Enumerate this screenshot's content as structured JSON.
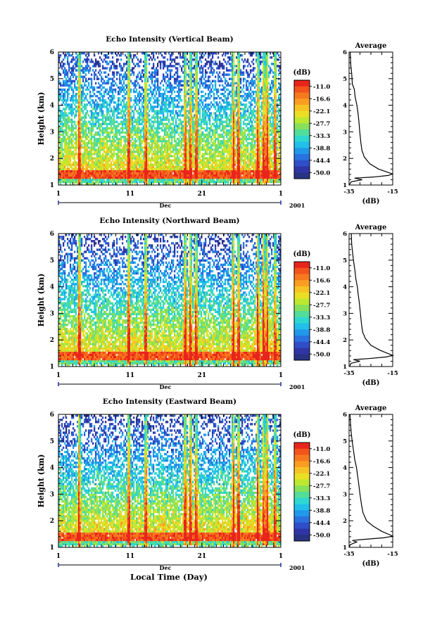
{
  "figure": {
    "xlabel_bottom": "Local Time (Day)"
  },
  "colorbar": {
    "unit": "(dB)",
    "ticks": [
      "-11.0",
      "-16.6",
      "-22.1",
      "-27.7",
      "-33.3",
      "-38.8",
      "-44.4",
      "-50.0"
    ],
    "colors": [
      "#e8251c",
      "#f2541c",
      "#f7791e",
      "#fa9d22",
      "#f6c324",
      "#eadf24",
      "#bde830",
      "#86e05a",
      "#52dd9a",
      "#2ed8d0",
      "#21bfea",
      "#2198ea",
      "#2a72e0",
      "#2f4ec8",
      "#2f35a6",
      "#293383"
    ]
  },
  "chart_data": [
    {
      "type": "heatmap",
      "title": "Echo Intensity (Vertical Beam)",
      "ylabel": "Height (km)",
      "yticks": [
        "1",
        "2",
        "3",
        "4",
        "5",
        "6"
      ],
      "ylim": [
        1,
        6
      ],
      "xticks": [
        "1",
        "11",
        "21",
        "1"
      ],
      "month_label": "Dec",
      "year_label": "2001",
      "value_range_db": [
        -50.0,
        -11.0
      ],
      "bright_day_columns": [
        3.9,
        10.8,
        13.2,
        18.7,
        19.4,
        20.2,
        25.4,
        26.1,
        28.8,
        29.6,
        30.1,
        31.2
      ],
      "average_profile": {
        "title": "Average",
        "xlabel": "(dB)",
        "xticks": [
          "-35",
          "-15"
        ],
        "xlim": [
          -35,
          -15
        ],
        "ylim": [
          1,
          6
        ],
        "points": [
          [
            -34.5,
            6.0
          ],
          [
            -34.2,
            5.5
          ],
          [
            -33.8,
            5.2
          ],
          [
            -33.5,
            4.8
          ],
          [
            -32.6,
            4.6
          ],
          [
            -32.2,
            4.3
          ],
          [
            -31.4,
            4.0
          ],
          [
            -30.9,
            3.7
          ],
          [
            -30.5,
            3.4
          ],
          [
            -30.1,
            3.0
          ],
          [
            -29.6,
            2.6
          ],
          [
            -29.1,
            2.3
          ],
          [
            -28.0,
            2.05
          ],
          [
            -25.5,
            1.8
          ],
          [
            -21.5,
            1.6
          ],
          [
            -18.0,
            1.5
          ],
          [
            -15.2,
            1.42
          ],
          [
            -17.0,
            1.36
          ],
          [
            -24.0,
            1.3
          ],
          [
            -32.5,
            1.26
          ],
          [
            -29.0,
            1.2
          ],
          [
            -34.0,
            1.12
          ],
          [
            -34.8,
            1.02
          ]
        ]
      }
    },
    {
      "type": "heatmap",
      "title": "Echo Intensity (Northward Beam)",
      "ylabel": "Height (km)",
      "yticks": [
        "1",
        "2",
        "3",
        "4",
        "5",
        "6"
      ],
      "ylim": [
        1,
        6
      ],
      "xticks": [
        "1",
        "11",
        "21",
        "1"
      ],
      "month_label": "Dec",
      "year_label": "2001",
      "value_range_db": [
        -50.0,
        -11.0
      ],
      "bright_day_columns": [
        3.9,
        10.8,
        13.2,
        18.7,
        19.4,
        20.2,
        25.4,
        26.1,
        28.8,
        29.6,
        30.1,
        31.2
      ],
      "average_profile": {
        "title": "Average",
        "xlabel": "(dB)",
        "xticks": [
          "-35",
          "-15"
        ],
        "xlim": [
          -35,
          -15
        ],
        "ylim": [
          1,
          6
        ],
        "points": [
          [
            -34.0,
            6.0
          ],
          [
            -33.8,
            5.6
          ],
          [
            -33.4,
            5.3
          ],
          [
            -33.0,
            5.0
          ],
          [
            -32.3,
            4.6
          ],
          [
            -31.9,
            4.3
          ],
          [
            -31.2,
            4.0
          ],
          [
            -30.8,
            3.7
          ],
          [
            -30.3,
            3.4
          ],
          [
            -29.8,
            3.0
          ],
          [
            -29.3,
            2.6
          ],
          [
            -28.8,
            2.3
          ],
          [
            -27.5,
            2.05
          ],
          [
            -25.0,
            1.8
          ],
          [
            -21.0,
            1.62
          ],
          [
            -17.5,
            1.5
          ],
          [
            -15.0,
            1.42
          ],
          [
            -18.0,
            1.36
          ],
          [
            -26.0,
            1.3
          ],
          [
            -33.0,
            1.26
          ],
          [
            -30.0,
            1.2
          ],
          [
            -34.2,
            1.12
          ],
          [
            -34.6,
            1.02
          ]
        ]
      }
    },
    {
      "type": "heatmap",
      "title": "Echo Intensity (Eastward Beam)",
      "ylabel": "Height (km)",
      "yticks": [
        "1",
        "2",
        "3",
        "4",
        "5",
        "6"
      ],
      "ylim": [
        1,
        6
      ],
      "xticks": [
        "1",
        "11",
        "21",
        "1"
      ],
      "month_label": "Dec",
      "year_label": "2001",
      "value_range_db": [
        -50.0,
        -11.0
      ],
      "bright_day_columns": [
        3.9,
        10.8,
        13.2,
        18.7,
        19.4,
        20.2,
        25.4,
        26.1,
        28.8,
        29.6,
        30.1,
        31.2
      ],
      "average_profile": {
        "title": "Average",
        "xlabel": "(dB)",
        "xticks": [
          "-35",
          "-15"
        ],
        "xlim": [
          -35,
          -15
        ],
        "ylim": [
          1,
          6
        ],
        "points": [
          [
            -34.6,
            6.0
          ],
          [
            -34.3,
            5.6
          ],
          [
            -34.0,
            5.3
          ],
          [
            -33.6,
            5.0
          ],
          [
            -32.9,
            4.6
          ],
          [
            -32.4,
            4.3
          ],
          [
            -31.6,
            4.0
          ],
          [
            -31.1,
            3.7
          ],
          [
            -30.6,
            3.4
          ],
          [
            -30.0,
            3.0
          ],
          [
            -29.3,
            2.6
          ],
          [
            -28.6,
            2.3
          ],
          [
            -27.0,
            2.0
          ],
          [
            -24.0,
            1.8
          ],
          [
            -20.0,
            1.6
          ],
          [
            -16.5,
            1.48
          ],
          [
            -15.0,
            1.42
          ],
          [
            -19.0,
            1.36
          ],
          [
            -28.0,
            1.3
          ],
          [
            -33.5,
            1.26
          ],
          [
            -31.5,
            1.2
          ],
          [
            -34.5,
            1.1
          ],
          [
            -34.8,
            1.02
          ]
        ]
      }
    }
  ]
}
